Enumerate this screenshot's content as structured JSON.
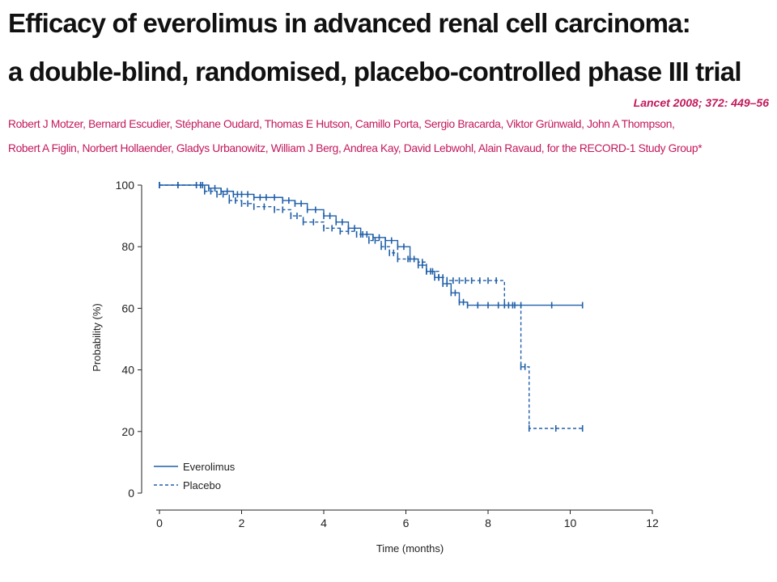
{
  "header": {
    "title_line1": "Efficacy of everolimus in advanced renal cell carcinoma:",
    "title_line2": "a double-blind, randomised, placebo-controlled phase III trial",
    "citation": "Lancet 2008; 372: 449–56",
    "authors_line1": "Robert J Motzer, Bernard Escudier, Stéphane Oudard, Thomas E Hutson, Camillo Porta, Sergio Bracarda, Viktor Grünwald, John A Thompson,",
    "authors_line2": "Robert A Figlin, Norbert Hollaender, Gladys Urbanowitz, William J Berg, Andrea Kay, David Lebwohl, Alain Ravaud, for the RECORD-1 Study Group*"
  },
  "colors": {
    "curve": "#1f5fa8",
    "text": "#222222",
    "author_text": "#c2185b"
  },
  "chart_data": {
    "type": "line",
    "xlabel": "Time (months)",
    "ylabel": "Probability (%)",
    "xlim": [
      0,
      12
    ],
    "ylim": [
      0,
      100
    ],
    "xticks": [
      "0",
      "2",
      "4",
      "6",
      "8",
      "10",
      "12"
    ],
    "yticks": [
      "0",
      "20",
      "40",
      "60",
      "80",
      "100"
    ],
    "legend_position": "bottom-left",
    "grid": false,
    "series": [
      {
        "name": "Everolimus",
        "style": "solid",
        "x": [
          0,
          0.9,
          1.2,
          1.5,
          1.8,
          2.0,
          2.3,
          2.6,
          3.0,
          3.3,
          3.6,
          4.0,
          4.3,
          4.6,
          4.9,
          5.2,
          5.5,
          5.8,
          6.1,
          6.3,
          6.5,
          6.7,
          6.9,
          7.1,
          7.3,
          7.5,
          8.0,
          8.5,
          8.8,
          10.3
        ],
        "y": [
          100,
          100,
          99,
          98,
          97,
          97,
          96,
          96,
          95,
          94,
          92,
          90,
          88,
          86,
          84,
          83,
          82,
          80,
          76,
          74,
          72,
          70,
          68,
          65,
          62,
          61,
          61,
          61,
          61,
          61
        ]
      },
      {
        "name": "Placebo",
        "style": "dashed",
        "x": [
          0,
          0.9,
          1.1,
          1.4,
          1.7,
          2.0,
          2.3,
          2.8,
          3.2,
          3.5,
          4.0,
          4.4,
          4.8,
          5.1,
          5.4,
          5.6,
          5.8,
          6.3,
          6.5,
          6.8,
          7.0,
          7.3,
          7.6,
          8.0,
          8.4,
          8.8,
          9.0,
          10.3
        ],
        "y": [
          100,
          100,
          98,
          97,
          95,
          94,
          93,
          92,
          90,
          88,
          86,
          85,
          84,
          82,
          80,
          78,
          76,
          75,
          72,
          70,
          69,
          69,
          69,
          69,
          61,
          41,
          21,
          21
        ]
      }
    ]
  }
}
